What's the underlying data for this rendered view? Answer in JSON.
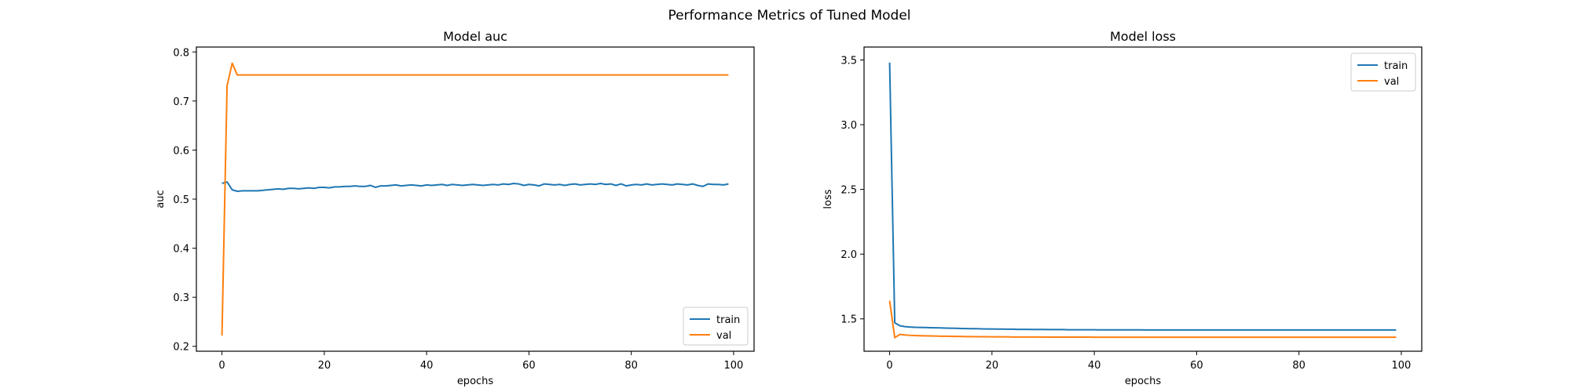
{
  "figure": {
    "suptitle": "Performance Metrics of Tuned Model"
  },
  "colors": {
    "train": "#1f77b4",
    "val": "#ff7f0e",
    "axes": "#000000"
  },
  "chart_data": [
    {
      "type": "line",
      "title": "Model auc",
      "xlabel": "epochs",
      "ylabel": "auc",
      "xlim": [
        -5,
        104
      ],
      "ylim": [
        0.19,
        0.81
      ],
      "xticks": [
        0,
        20,
        40,
        60,
        80,
        100
      ],
      "yticks": [
        0.2,
        0.3,
        0.4,
        0.5,
        0.6,
        0.7,
        0.8
      ],
      "ytick_decimals": 1,
      "grid": false,
      "legend": {
        "location": "lower-right",
        "entries": [
          "train",
          "val"
        ]
      },
      "series": [
        {
          "name": "train",
          "color": "#1f77b4",
          "values": [
            0.532,
            0.535,
            0.519,
            0.516,
            0.517,
            0.517,
            0.517,
            0.517,
            0.518,
            0.519,
            0.52,
            0.521,
            0.52,
            0.522,
            0.522,
            0.521,
            0.522,
            0.523,
            0.522,
            0.524,
            0.524,
            0.523,
            0.525,
            0.525,
            0.526,
            0.526,
            0.527,
            0.526,
            0.526,
            0.528,
            0.524,
            0.527,
            0.527,
            0.528,
            0.529,
            0.527,
            0.528,
            0.529,
            0.528,
            0.527,
            0.529,
            0.528,
            0.529,
            0.53,
            0.528,
            0.53,
            0.529,
            0.528,
            0.529,
            0.53,
            0.529,
            0.528,
            0.529,
            0.53,
            0.529,
            0.531,
            0.53,
            0.532,
            0.531,
            0.528,
            0.53,
            0.529,
            0.527,
            0.531,
            0.53,
            0.529,
            0.53,
            0.528,
            0.53,
            0.531,
            0.529,
            0.53,
            0.531,
            0.53,
            0.532,
            0.53,
            0.531,
            0.528,
            0.531,
            0.527,
            0.529,
            0.53,
            0.529,
            0.531,
            0.529,
            0.53,
            0.531,
            0.53,
            0.529,
            0.531,
            0.53,
            0.529,
            0.531,
            0.528,
            0.526,
            0.531,
            0.53,
            0.53,
            0.529,
            0.531
          ]
        },
        {
          "name": "val",
          "color": "#ff7f0e",
          "values": [
            0.222,
            0.731,
            0.777,
            0.753,
            0.753,
            0.753,
            0.753,
            0.753,
            0.753,
            0.753,
            0.753,
            0.753,
            0.753,
            0.753,
            0.753,
            0.753,
            0.753,
            0.753,
            0.753,
            0.753,
            0.753,
            0.753,
            0.753,
            0.753,
            0.753,
            0.753,
            0.753,
            0.753,
            0.753,
            0.753,
            0.753,
            0.753,
            0.753,
            0.753,
            0.753,
            0.753,
            0.753,
            0.753,
            0.753,
            0.753,
            0.753,
            0.753,
            0.753,
            0.753,
            0.753,
            0.753,
            0.753,
            0.753,
            0.753,
            0.753,
            0.753,
            0.753,
            0.753,
            0.753,
            0.753,
            0.753,
            0.753,
            0.753,
            0.753,
            0.753,
            0.753,
            0.753,
            0.753,
            0.753,
            0.753,
            0.753,
            0.753,
            0.753,
            0.753,
            0.753,
            0.753,
            0.753,
            0.753,
            0.753,
            0.753,
            0.753,
            0.753,
            0.753,
            0.753,
            0.753,
            0.753,
            0.753,
            0.753,
            0.753,
            0.753,
            0.753,
            0.753,
            0.753,
            0.753,
            0.753,
            0.753,
            0.753,
            0.753,
            0.753,
            0.753,
            0.753,
            0.753,
            0.753,
            0.753,
            0.753
          ]
        }
      ]
    },
    {
      "type": "line",
      "title": "Model loss",
      "xlabel": "epochs",
      "ylabel": "loss",
      "xlim": [
        -5,
        104
      ],
      "ylim": [
        1.25,
        3.6
      ],
      "xticks": [
        0,
        20,
        40,
        60,
        80,
        100
      ],
      "yticks": [
        1.5,
        2.0,
        2.5,
        3.0,
        3.5
      ],
      "ytick_decimals": 1,
      "grid": false,
      "legend": {
        "location": "upper-right",
        "entries": [
          "train",
          "val"
        ]
      },
      "series": [
        {
          "name": "train",
          "color": "#1f77b4",
          "values": [
            3.48,
            1.47,
            1.447,
            1.44,
            1.437,
            1.435,
            1.434,
            1.433,
            1.432,
            1.431,
            1.43,
            1.429,
            1.428,
            1.427,
            1.426,
            1.425,
            1.424,
            1.424,
            1.423,
            1.422,
            1.422,
            1.421,
            1.421,
            1.42,
            1.42,
            1.419,
            1.419,
            1.419,
            1.418,
            1.418,
            1.418,
            1.417,
            1.417,
            1.417,
            1.417,
            1.416,
            1.416,
            1.416,
            1.416,
            1.416,
            1.416,
            1.415,
            1.415,
            1.415,
            1.415,
            1.415,
            1.415,
            1.415,
            1.415,
            1.415,
            1.414,
            1.414,
            1.414,
            1.414,
            1.414,
            1.414,
            1.414,
            1.414,
            1.414,
            1.414,
            1.414,
            1.414,
            1.414,
            1.414,
            1.414,
            1.414,
            1.414,
            1.414,
            1.414,
            1.414,
            1.414,
            1.414,
            1.414,
            1.414,
            1.414,
            1.414,
            1.414,
            1.414,
            1.414,
            1.414,
            1.414,
            1.414,
            1.414,
            1.414,
            1.414,
            1.414,
            1.414,
            1.414,
            1.414,
            1.414,
            1.414,
            1.414,
            1.414,
            1.414,
            1.414,
            1.414,
            1.414,
            1.414,
            1.414,
            1.414
          ]
        },
        {
          "name": "val",
          "color": "#ff7f0e",
          "values": [
            1.64,
            1.355,
            1.38,
            1.376,
            1.373,
            1.371,
            1.37,
            1.369,
            1.368,
            1.367,
            1.366,
            1.366,
            1.365,
            1.364,
            1.364,
            1.363,
            1.363,
            1.362,
            1.362,
            1.362,
            1.361,
            1.361,
            1.361,
            1.361,
            1.36,
            1.36,
            1.36,
            1.36,
            1.36,
            1.36,
            1.359,
            1.359,
            1.359,
            1.359,
            1.359,
            1.359,
            1.359,
            1.359,
            1.359,
            1.359,
            1.358,
            1.358,
            1.358,
            1.358,
            1.358,
            1.358,
            1.358,
            1.358,
            1.358,
            1.358,
            1.358,
            1.358,
            1.358,
            1.358,
            1.358,
            1.358,
            1.358,
            1.358,
            1.358,
            1.358,
            1.358,
            1.358,
            1.358,
            1.358,
            1.358,
            1.358,
            1.358,
            1.358,
            1.358,
            1.358,
            1.358,
            1.358,
            1.358,
            1.358,
            1.358,
            1.358,
            1.358,
            1.358,
            1.358,
            1.358,
            1.358,
            1.358,
            1.358,
            1.358,
            1.358,
            1.358,
            1.358,
            1.358,
            1.358,
            1.358,
            1.358,
            1.358,
            1.358,
            1.358,
            1.358,
            1.358,
            1.358,
            1.358,
            1.358,
            1.358
          ]
        }
      ]
    }
  ]
}
